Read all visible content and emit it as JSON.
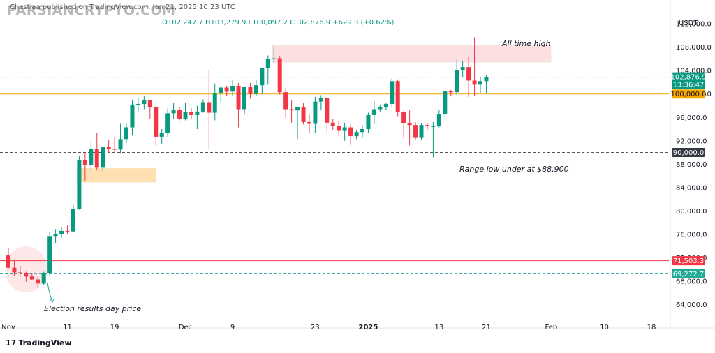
{
  "header": {
    "publisher": "Chestiaa published on TradingView.com, Jan 21, 2025 10:23 UTC",
    "watermark": "PARSIANCRYPTO.COM",
    "open": "O102,247.7",
    "high": "H103,279.9",
    "low": "L100,097.2",
    "close": "C102,876.9",
    "change": "+629.3 (+0.62%)"
  },
  "axis_unit": "USDT",
  "footer_brand": "TradingView",
  "footer_logo": "17",
  "price_labels": {
    "current": "102,876.9",
    "countdown": "13:36:47",
    "level_100k": "100,000.0",
    "level_90k": "90,000.0",
    "level_71503": "71,503.3",
    "level_69272": "69,272.7"
  },
  "annotations": {
    "ath": "All time high",
    "range_low": "Range low under at $88,900",
    "election": "Election results day price"
  },
  "colors": {
    "up": "#089981",
    "down": "#f23645",
    "orange_line": "#f7a600",
    "red_line": "#f23645",
    "teal_line": "#26a69a",
    "dark_label": "#363a45",
    "pink_zone": "#fcdfe1",
    "orange_zone": "#ffe0b2"
  },
  "chart_data": {
    "type": "candlestick",
    "title": "",
    "xlabel": "",
    "ylabel": "",
    "y_ticks": [
      64000,
      68000,
      72000,
      76000,
      80000,
      84000,
      88000,
      92000,
      96000,
      100000,
      104000,
      108000,
      112000
    ],
    "y_tick_labels": [
      "64,000.0",
      "68,000.0",
      "72,000.0",
      "76,000.0",
      "80,000.0",
      "84,000.0",
      "88,000.0",
      "92,000.0",
      "96,000.0",
      "100,000.0",
      "104,000.0",
      "108,000.0",
      "112,000.0"
    ],
    "x_ticks": [
      {
        "label": "Nov",
        "day": 0
      },
      {
        "label": "11",
        "day": 10
      },
      {
        "label": "19",
        "day": 18
      },
      {
        "label": "Dec",
        "day": 30
      },
      {
        "label": "9",
        "day": 38
      },
      {
        "label": "23",
        "day": 52
      },
      {
        "label": "2025",
        "day": 61
      },
      {
        "label": "13",
        "day": 73
      },
      {
        "label": "21",
        "day": 81
      },
      {
        "label": "Feb",
        "day": 92
      },
      {
        "label": "10",
        "day": 101
      },
      {
        "label": "18",
        "day": 109
      }
    ],
    "first_date": "2024-10-31",
    "candles": [
      [
        72400,
        73600,
        70200,
        70300
      ],
      [
        70300,
        71600,
        68900,
        69500
      ],
      [
        69500,
        70500,
        68800,
        69300
      ],
      [
        69300,
        69600,
        67900,
        68800
      ],
      [
        68800,
        69300,
        68200,
        68300
      ],
      [
        68300,
        68800,
        66800,
        67600
      ],
      [
        67600,
        69600,
        67400,
        69400
      ],
      [
        69400,
        76400,
        69000,
        75600
      ],
      [
        75600,
        76900,
        74500,
        76000
      ],
      [
        76000,
        77200,
        75400,
        76600
      ],
      [
        76600,
        77500,
        76000,
        76500
      ],
      [
        76500,
        81000,
        76300,
        80400
      ],
      [
        80400,
        89400,
        80200,
        88700
      ],
      [
        88700,
        89900,
        85200,
        87900
      ],
      [
        87900,
        91700,
        86900,
        90600
      ],
      [
        90600,
        93400,
        87000,
        87400
      ],
      [
        87400,
        91000,
        86800,
        91000
      ],
      [
        91000,
        92100,
        90000,
        90600
      ],
      [
        90600,
        92600,
        90000,
        90500
      ],
      [
        90500,
        94900,
        89800,
        92300
      ],
      [
        92300,
        94900,
        91600,
        94300
      ],
      [
        94300,
        99000,
        92900,
        98200
      ],
      [
        98200,
        99400,
        97000,
        98300
      ],
      [
        98300,
        99600,
        97400,
        98900
      ],
      [
        98900,
        99000,
        95800,
        97700
      ],
      [
        97700,
        98000,
        91200,
        92700
      ],
      [
        92700,
        94000,
        91500,
        93300
      ],
      [
        93300,
        97500,
        92600,
        96700
      ],
      [
        96700,
        98500,
        95700,
        97300
      ],
      [
        97300,
        97700,
        95500,
        95800
      ],
      [
        95800,
        98500,
        95500,
        96900
      ],
      [
        96900,
        97600,
        95800,
        96400
      ],
      [
        96400,
        98000,
        94000,
        97000
      ],
      [
        97000,
        99100,
        96800,
        98600
      ],
      [
        98600,
        104000,
        90500,
        96800
      ],
      [
        96800,
        101800,
        95500,
        100100
      ],
      [
        100100,
        101300,
        98600,
        101100
      ],
      [
        101100,
        101400,
        99600,
        100400
      ],
      [
        100400,
        102500,
        99600,
        101400
      ],
      [
        101400,
        101900,
        94300,
        97400
      ],
      [
        97400,
        101200,
        96500,
        101200
      ],
      [
        101200,
        101900,
        99200,
        100000
      ],
      [
        100000,
        102500,
        99600,
        101500
      ],
      [
        101500,
        104000,
        100000,
        104400
      ],
      [
        104400,
        106600,
        101600,
        106000
      ],
      [
        106000,
        108300,
        105200,
        106100
      ],
      [
        106100,
        106500,
        99900,
        100300
      ],
      [
        100300,
        101100,
        96000,
        97400
      ],
      [
        97400,
        98900,
        95100,
        97200
      ],
      [
        97200,
        97800,
        92300,
        97800
      ],
      [
        97800,
        98400,
        94800,
        95200
      ],
      [
        95200,
        96500,
        93400,
        94900
      ],
      [
        94900,
        99500,
        93400,
        98700
      ],
      [
        98700,
        99800,
        97200,
        99300
      ],
      [
        99300,
        99500,
        93500,
        95100
      ],
      [
        95100,
        95700,
        93800,
        94600
      ],
      [
        94600,
        95300,
        92700,
        93700
      ],
      [
        93700,
        95100,
        92000,
        94300
      ],
      [
        94300,
        94800,
        91300,
        92800
      ],
      [
        92800,
        93800,
        92300,
        93500
      ],
      [
        93500,
        94500,
        92500,
        94000
      ],
      [
        94000,
        96800,
        93300,
        96400
      ],
      [
        96400,
        98800,
        94800,
        97400
      ],
      [
        97400,
        98200,
        96900,
        97700
      ],
      [
        97700,
        98500,
        97200,
        98300
      ],
      [
        98300,
        102700,
        97800,
        102200
      ],
      [
        102200,
        102500,
        96200,
        96900
      ],
      [
        96900,
        97200,
        92500,
        95000
      ],
      [
        95000,
        97200,
        91200,
        94700
      ],
      [
        94700,
        95200,
        92200,
        92500
      ],
      [
        92500,
        95000,
        92200,
        94700
      ],
      [
        94700,
        95000,
        93900,
        94500
      ],
      [
        94500,
        95200,
        89200,
        94500
      ],
      [
        94500,
        97200,
        94300,
        96500
      ],
      [
        96500,
        100500,
        96000,
        100500
      ],
      [
        100500,
        100700,
        99600,
        100300
      ],
      [
        100300,
        105800,
        99800,
        104100
      ],
      [
        104100,
        105700,
        102800,
        104600
      ],
      [
        104600,
        106400,
        99500,
        102300
      ],
      [
        102300,
        109700,
        99700,
        101600
      ],
      [
        101600,
        103000,
        100100,
        102200
      ],
      [
        102200,
        103300,
        100100,
        102900
      ]
    ],
    "horizontal_lines": [
      {
        "price": 102876.9,
        "style": "dotted",
        "color": "#26a69a"
      },
      {
        "price": 100000,
        "style": "solid",
        "color": "#f7a600"
      },
      {
        "price": 90000,
        "style": "dashed",
        "color": "#555555"
      },
      {
        "price": 71503.3,
        "style": "solid",
        "color": "#f23645"
      },
      {
        "price": 69272.7,
        "style": "dashed",
        "color": "#26a69a"
      }
    ],
    "zones": [
      {
        "name": "ath-zone",
        "day_start": 45,
        "day_end": 92,
        "price_low": 105400,
        "price_high": 108300,
        "color": "#fcdfe1"
      },
      {
        "name": "support-zone",
        "day_start": 12,
        "day_end": 25,
        "price_low": 84900,
        "price_high": 87300,
        "color": "#ffe0b2"
      }
    ],
    "highlight_ellipse": {
      "day_center": 3,
      "price_center": 70000
    }
  }
}
